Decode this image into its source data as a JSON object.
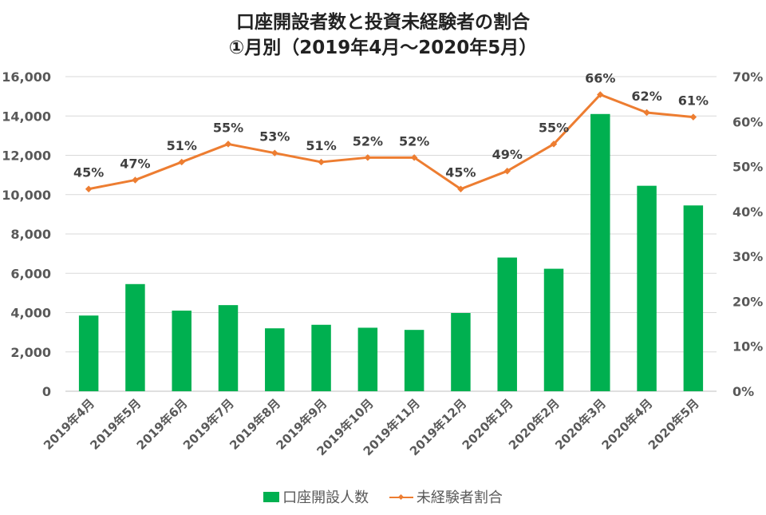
{
  "chart_data": {
    "type": "bar",
    "title": "口座開設者数と投資未経験者の割合",
    "subtitle": "①月別（2019年4月～2020年5月）",
    "categories": [
      "2019年4月",
      "2019年5月",
      "2019年6月",
      "2019年7月",
      "2019年8月",
      "2019年9月",
      "2019年10月",
      "2019年11月",
      "2019年12月",
      "2020年1月",
      "2020年2月",
      "2020年3月",
      "2020年4月",
      "2020年5月"
    ],
    "series": [
      {
        "name": "口座開設人数",
        "type": "bar",
        "axis": "left",
        "color": "#00b050",
        "values": [
          3850,
          5450,
          4100,
          4380,
          3200,
          3380,
          3230,
          3120,
          3980,
          6800,
          6230,
          14100,
          10450,
          9450
        ]
      },
      {
        "name": "未経験者割合",
        "type": "line",
        "axis": "right",
        "color": "#ed7d31",
        "values": [
          45,
          47,
          51,
          55,
          53,
          51,
          52,
          52,
          45,
          49,
          55,
          66,
          62,
          61
        ],
        "labels": [
          "45%",
          "47%",
          "51%",
          "55%",
          "53%",
          "51%",
          "52%",
          "52%",
          "45%",
          "49%",
          "55%",
          "66%",
          "62%",
          "61%"
        ]
      }
    ],
    "y_left": {
      "min": 0,
      "max": 16000,
      "step": 2000,
      "ticks": [
        "0",
        "2,000",
        "4,000",
        "6,000",
        "8,000",
        "10,000",
        "12,000",
        "14,000",
        "16,000"
      ]
    },
    "y_right": {
      "min": 0,
      "max": 70,
      "step": 10,
      "ticks": [
        "0%",
        "10%",
        "20%",
        "30%",
        "40%",
        "50%",
        "60%",
        "70%"
      ]
    },
    "grid": true,
    "legend": "bottom"
  }
}
